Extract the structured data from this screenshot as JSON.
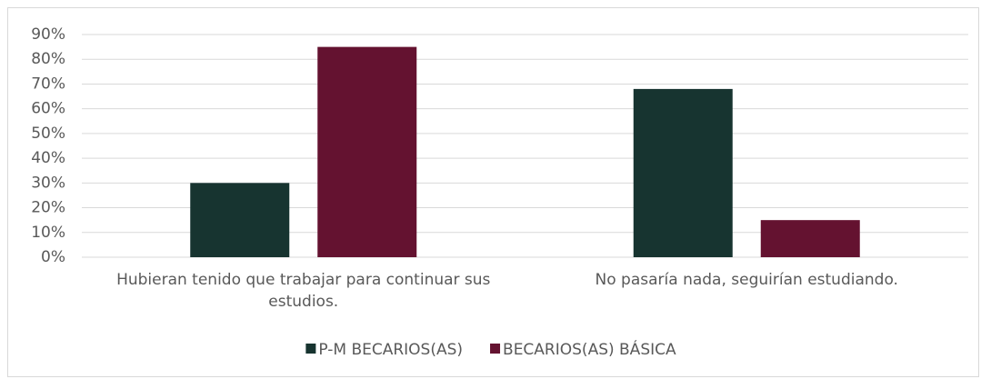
{
  "chart_data": {
    "type": "bar",
    "categories": [
      "Hubieran tenido que trabajar para continuar sus estudios.",
      "No pasaría nada, seguirían estudiando."
    ],
    "series": [
      {
        "name": "P-M BECARIOS(AS)",
        "color": "#173430",
        "values": [
          30,
          68
        ]
      },
      {
        "name": "BECARIOS(AS) BÁSICA",
        "color": "#641230",
        "values": [
          85,
          15
        ]
      }
    ],
    "ylim": [
      0,
      90
    ],
    "yticks": [
      {
        "value": 0,
        "label": "0%"
      },
      {
        "value": 10,
        "label": "10%"
      },
      {
        "value": 20,
        "label": "20%"
      },
      {
        "value": 30,
        "label": "30%"
      },
      {
        "value": 40,
        "label": "40%"
      },
      {
        "value": 50,
        "label": "50%"
      },
      {
        "value": 60,
        "label": "60%"
      },
      {
        "value": 70,
        "label": "70%"
      },
      {
        "value": 80,
        "label": "80%"
      },
      {
        "value": 90,
        "label": "90%"
      }
    ],
    "grid": true,
    "legend": "bottom"
  }
}
